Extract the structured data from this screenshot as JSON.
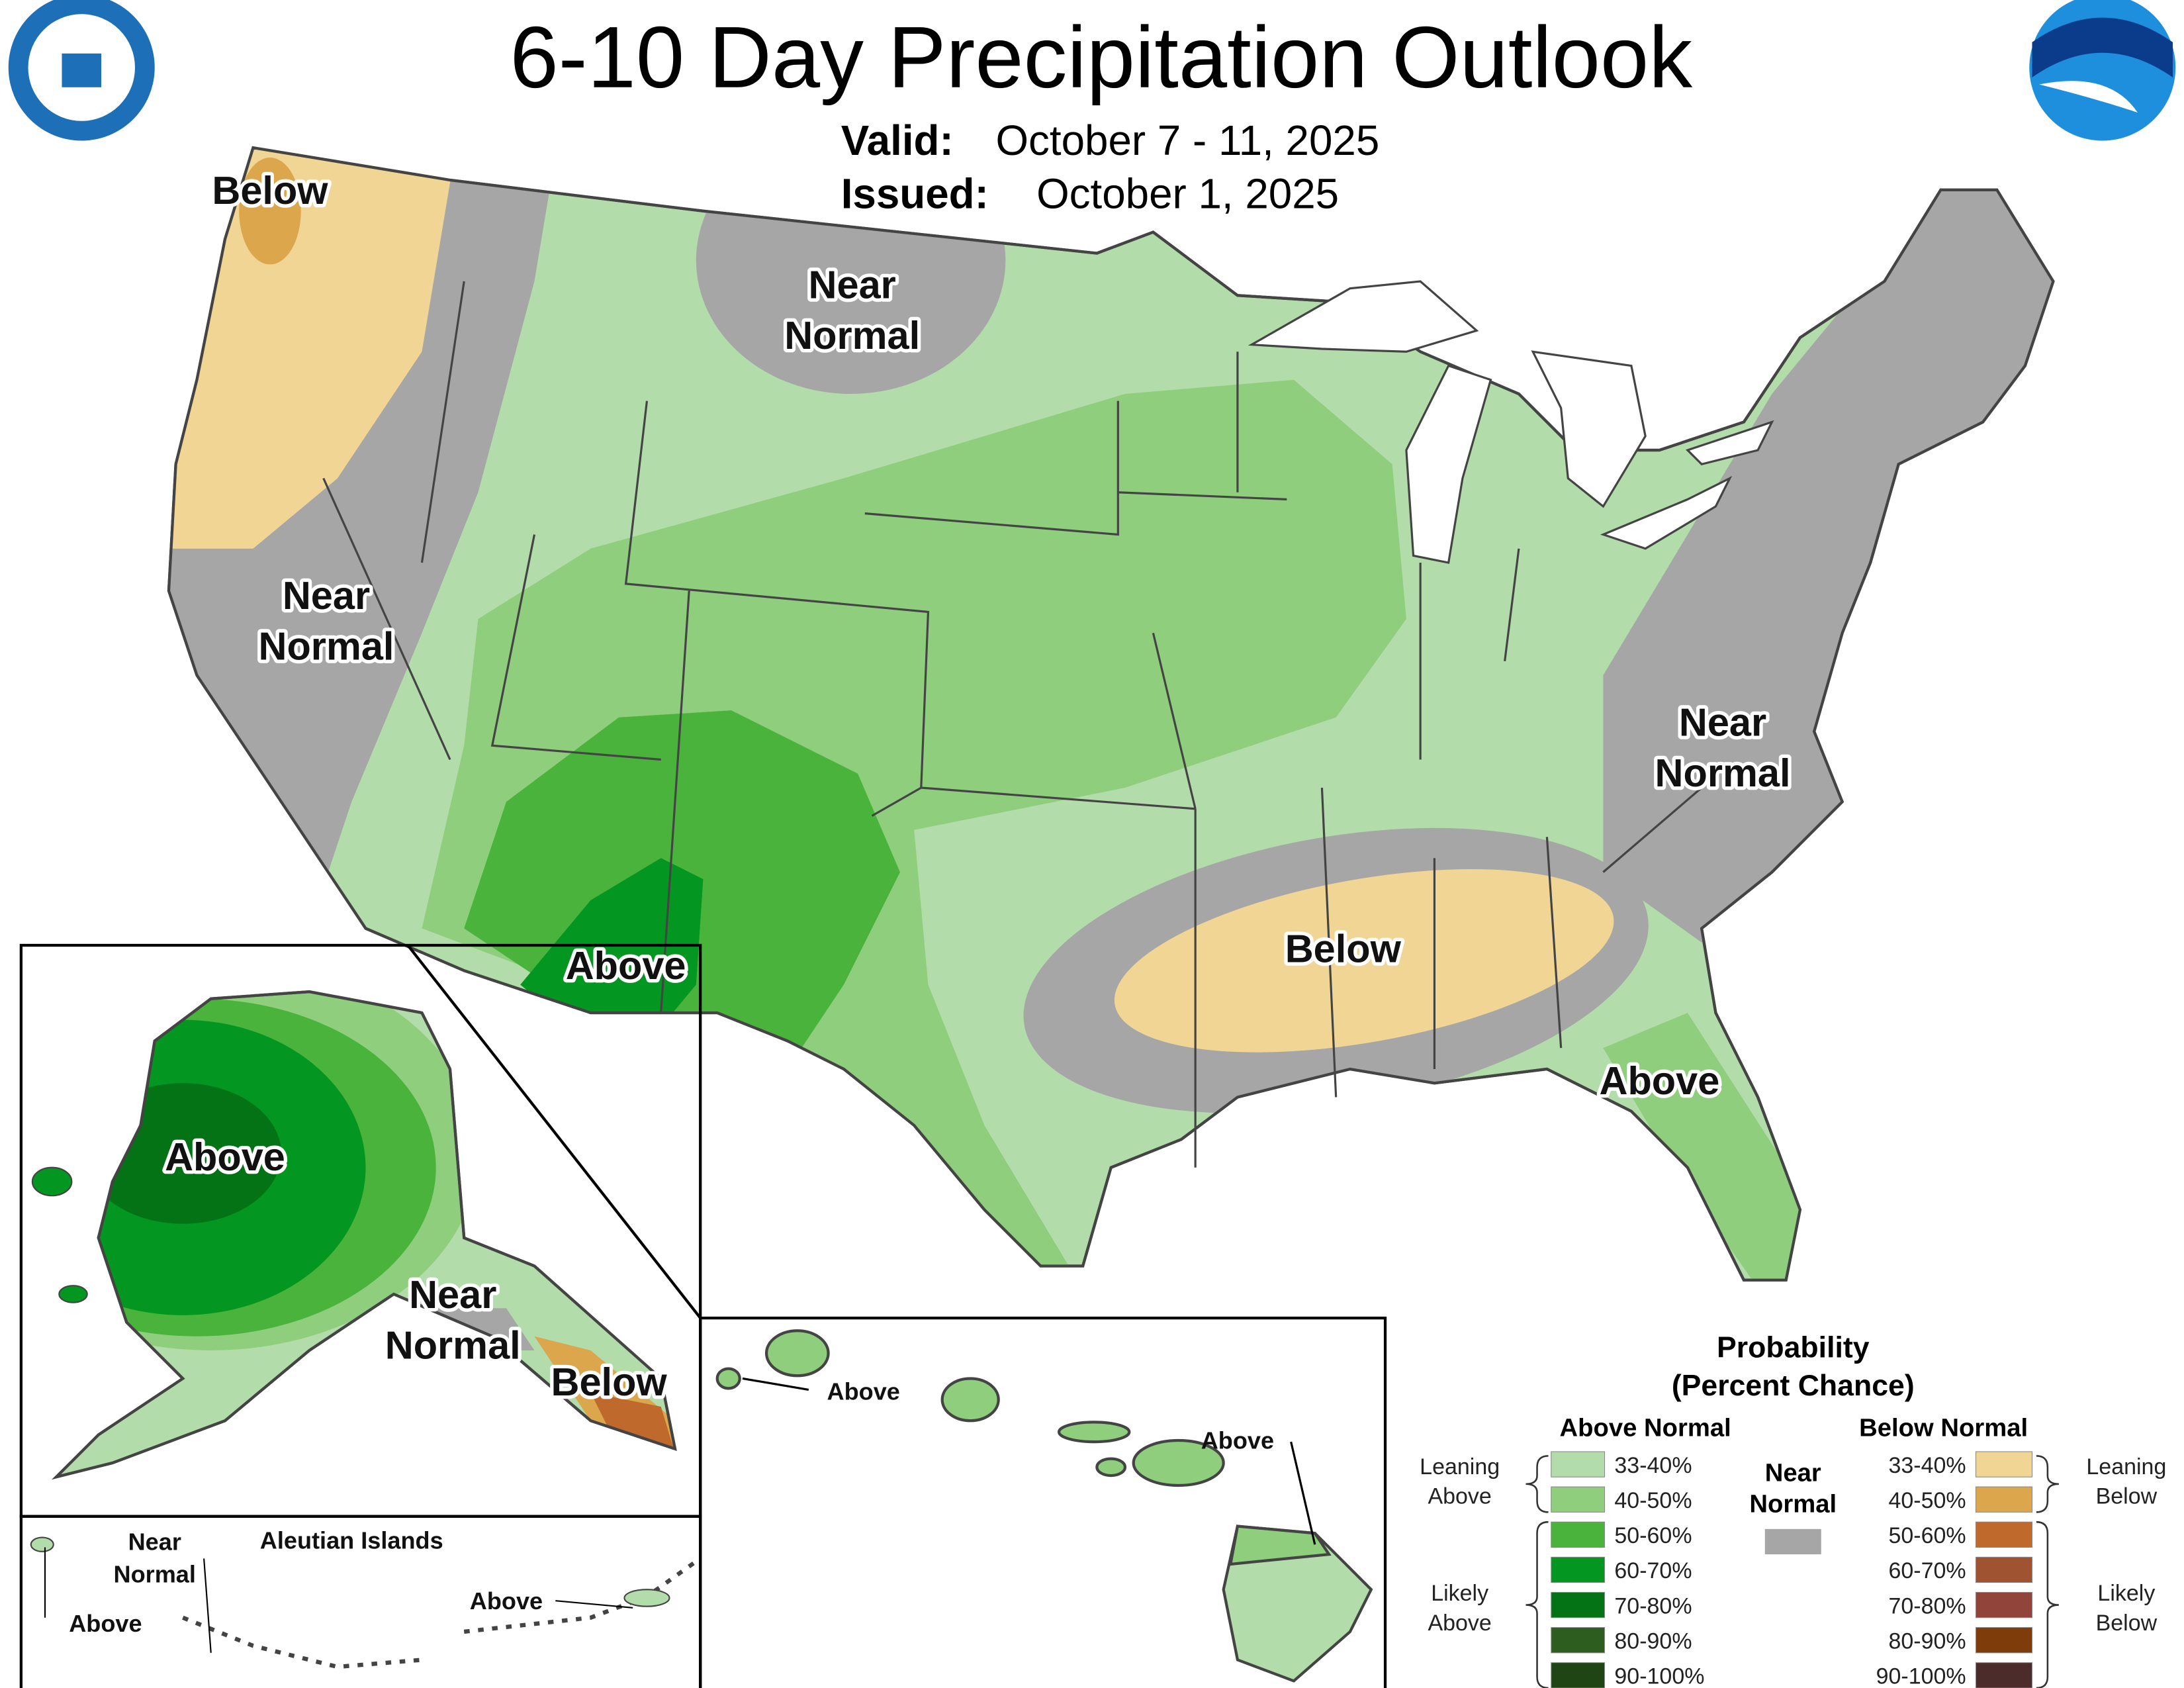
{
  "header": {
    "title": "6-10 Day Precipitation Outlook",
    "valid_label": "Valid:",
    "valid": "October 7 - 11, 2025",
    "issued_label": "Issued:",
    "issued": "October 1, 2025"
  },
  "conus": {
    "labels": [
      {
        "lines": [
          "Below"
        ]
      },
      {
        "lines": [
          "Near",
          "Normal"
        ]
      },
      {
        "lines": [
          "Near",
          "Normal"
        ]
      },
      {
        "lines": [
          "Above"
        ]
      },
      {
        "lines": [
          "Below"
        ]
      },
      {
        "lines": [
          "Near",
          "Normal"
        ]
      },
      {
        "lines": [
          "Above"
        ]
      }
    ]
  },
  "alaska": {
    "labels": [
      {
        "lines": [
          "Above"
        ]
      },
      {
        "lines": [
          "Near",
          "Normal"
        ]
      },
      {
        "lines": [
          "Below"
        ]
      }
    ]
  },
  "aleutians": {
    "title": "Aleutian Islands",
    "labels": [
      {
        "lines": [
          "Near",
          "Normal"
        ]
      },
      {
        "lines": [
          "Above"
        ]
      },
      {
        "lines": [
          "Above"
        ]
      }
    ]
  },
  "hawaii": {
    "labels": [
      {
        "lines": [
          "Above"
        ]
      },
      {
        "lines": [
          "Above"
        ]
      }
    ]
  },
  "legend": {
    "title": [
      "Probability",
      "(Percent Chance)"
    ],
    "above_normal": {
      "title": "Above Normal",
      "categories": [
        {
          "label": "33-40%",
          "color": "#b3dcab"
        },
        {
          "label": "40-50%",
          "color": "#8fce7d"
        },
        {
          "label": "50-60%",
          "color": "#4ab33c"
        },
        {
          "label": "60-70%",
          "color": "#039620"
        },
        {
          "label": "70-80%",
          "color": "#037316"
        },
        {
          "label": "80-90%",
          "color": "#2e5e1f"
        },
        {
          "label": "90-100%",
          "color": "#1f4514"
        }
      ]
    },
    "below_normal": {
      "title": "Below Normal",
      "categories": [
        {
          "label": "33-40%",
          "color": "#f0d595"
        },
        {
          "label": "40-50%",
          "color": "#dba64c"
        },
        {
          "label": "50-60%",
          "color": "#c0692d"
        },
        {
          "label": "60-70%",
          "color": "#9f5331"
        },
        {
          "label": "70-80%",
          "color": "#91443a"
        },
        {
          "label": "80-90%",
          "color": "#7d3c0a"
        },
        {
          "label": "90-100%",
          "color": "#4c2b2b"
        }
      ]
    },
    "near_normal": {
      "lines": [
        "Near",
        "Normal"
      ],
      "color": "#a6a6a6"
    },
    "brackets": {
      "leaning_above": [
        "Leaning",
        "Above"
      ],
      "likely_above": [
        "Likely",
        "Above"
      ],
      "leaning_below": [
        "Leaning",
        "Below"
      ],
      "likely_below": [
        "Likely",
        "Below"
      ]
    }
  }
}
